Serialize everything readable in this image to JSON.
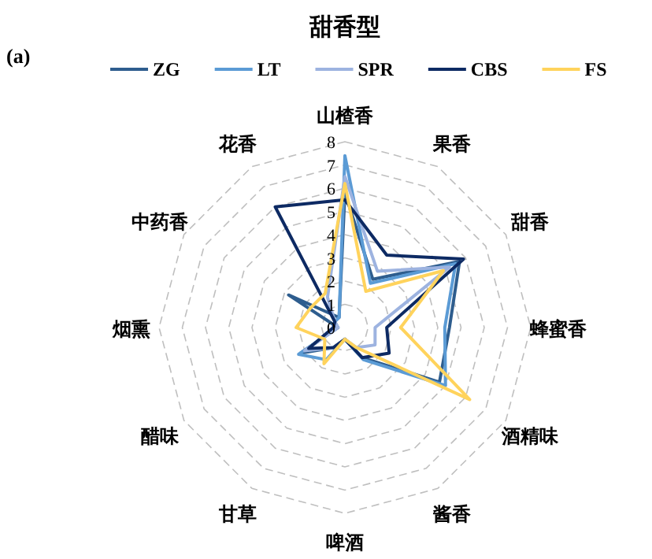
{
  "chart_data": {
    "type": "radar",
    "title": "甜香型",
    "annotations": [
      "(a)"
    ],
    "categories": [
      "山楂香",
      "果香",
      "甜香",
      "蜂蜜香",
      "酒精味",
      "酱香",
      "啤酒",
      "甘草",
      "醋味",
      "烟熏",
      "中药香",
      "花香"
    ],
    "ylim": [
      0,
      8
    ],
    "yticks": [
      0,
      1,
      2,
      3,
      4,
      5,
      6,
      7,
      8
    ],
    "grid": true,
    "legend": "top",
    "line_style": "solid",
    "series": [
      {
        "name": "ZG",
        "color": "#2e5d8e",
        "values": [
          5.8,
          2.4,
          5.7,
          4.5,
          4.7,
          1.5,
          0.5,
          1.0,
          2.2,
          0.3,
          2.8,
          0.5
        ]
      },
      {
        "name": "LT",
        "color": "#5b9bd5",
        "values": [
          7.4,
          2.2,
          5.5,
          4.3,
          5.0,
          1.6,
          0.5,
          1.6,
          2.3,
          0.3,
          0.5,
          0.5
        ]
      },
      {
        "name": "SPR",
        "color": "#9db3e0",
        "values": [
          6.5,
          2.8,
          5.2,
          1.3,
          1.5,
          1.0,
          0.5,
          1.0,
          2.0,
          0.3,
          0.5,
          1.5
        ]
      },
      {
        "name": "CBS",
        "color": "#0d2a63",
        "values": [
          5.5,
          3.6,
          5.9,
          1.8,
          2.2,
          1.5,
          0.5,
          1.0,
          1.8,
          0.5,
          0.5,
          6.0
        ]
      },
      {
        "name": "FS",
        "color": "#ffd35c",
        "values": [
          6.2,
          1.8,
          4.9,
          2.4,
          6.2,
          1.0,
          0.5,
          1.8,
          1.0,
          2.1,
          1.7,
          1.7
        ]
      }
    ]
  }
}
